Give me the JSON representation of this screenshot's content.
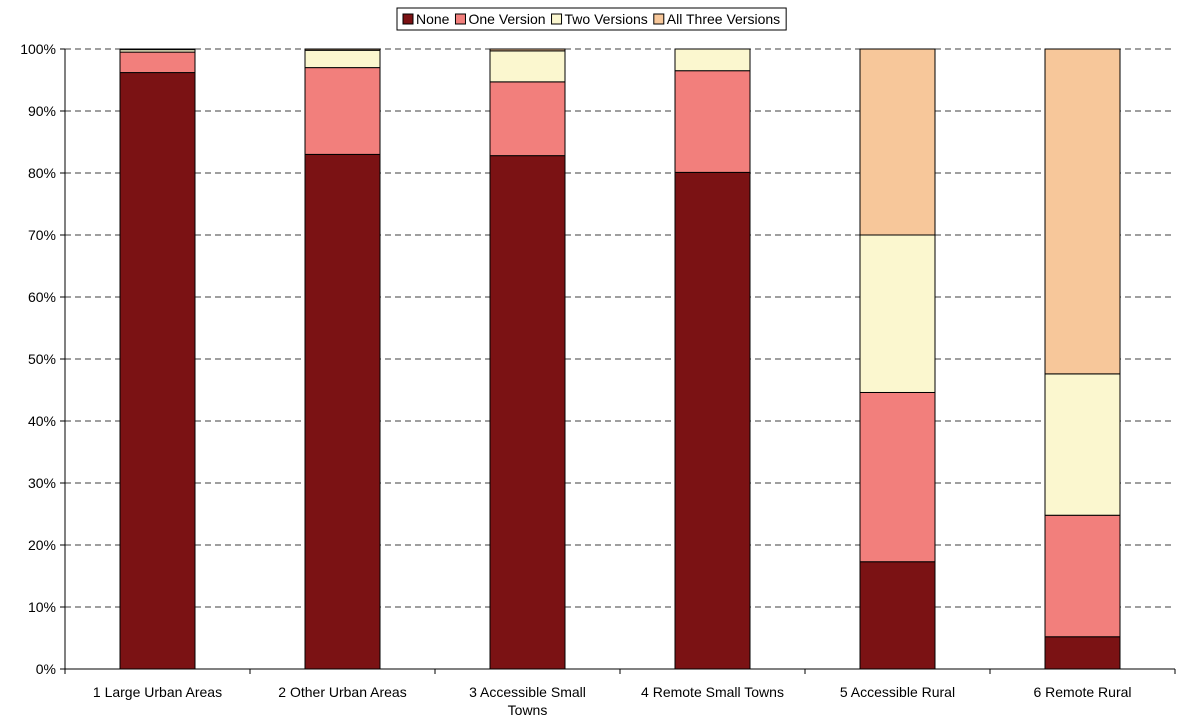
{
  "chart_data": {
    "type": "bar",
    "stacked": true,
    "percent": true,
    "categories": [
      [
        "1 Large Urban Areas"
      ],
      [
        "2 Other Urban Areas"
      ],
      [
        "3 Accessible Small",
        "Towns"
      ],
      [
        "4 Remote Small Towns"
      ],
      [
        "5 Accessible Rural"
      ],
      [
        "6 Remote Rural"
      ]
    ],
    "series": [
      {
        "name": "None",
        "color": "#7b1214",
        "values": [
          96.2,
          83.0,
          82.8,
          80.1,
          17.3,
          5.2
        ]
      },
      {
        "name": "One Version",
        "color": "#f27f7c",
        "values": [
          3.3,
          14.0,
          11.9,
          16.4,
          27.3,
          19.6
        ]
      },
      {
        "name": "Two Versions",
        "color": "#fbf7cf",
        "values": [
          0.4,
          2.8,
          5.0,
          3.5,
          25.4,
          22.8
        ]
      },
      {
        "name": "All Three Versions",
        "color": "#f7c79a",
        "values": [
          0.1,
          0.2,
          0.3,
          0.0,
          30.0,
          52.4
        ]
      }
    ],
    "yticks": [
      "0%",
      "10%",
      "20%",
      "30%",
      "40%",
      "50%",
      "60%",
      "70%",
      "80%",
      "90%",
      "100%"
    ],
    "ylim": [
      0,
      100
    ],
    "grid": "dashed-horizontal",
    "legend_position": "top-center"
  }
}
